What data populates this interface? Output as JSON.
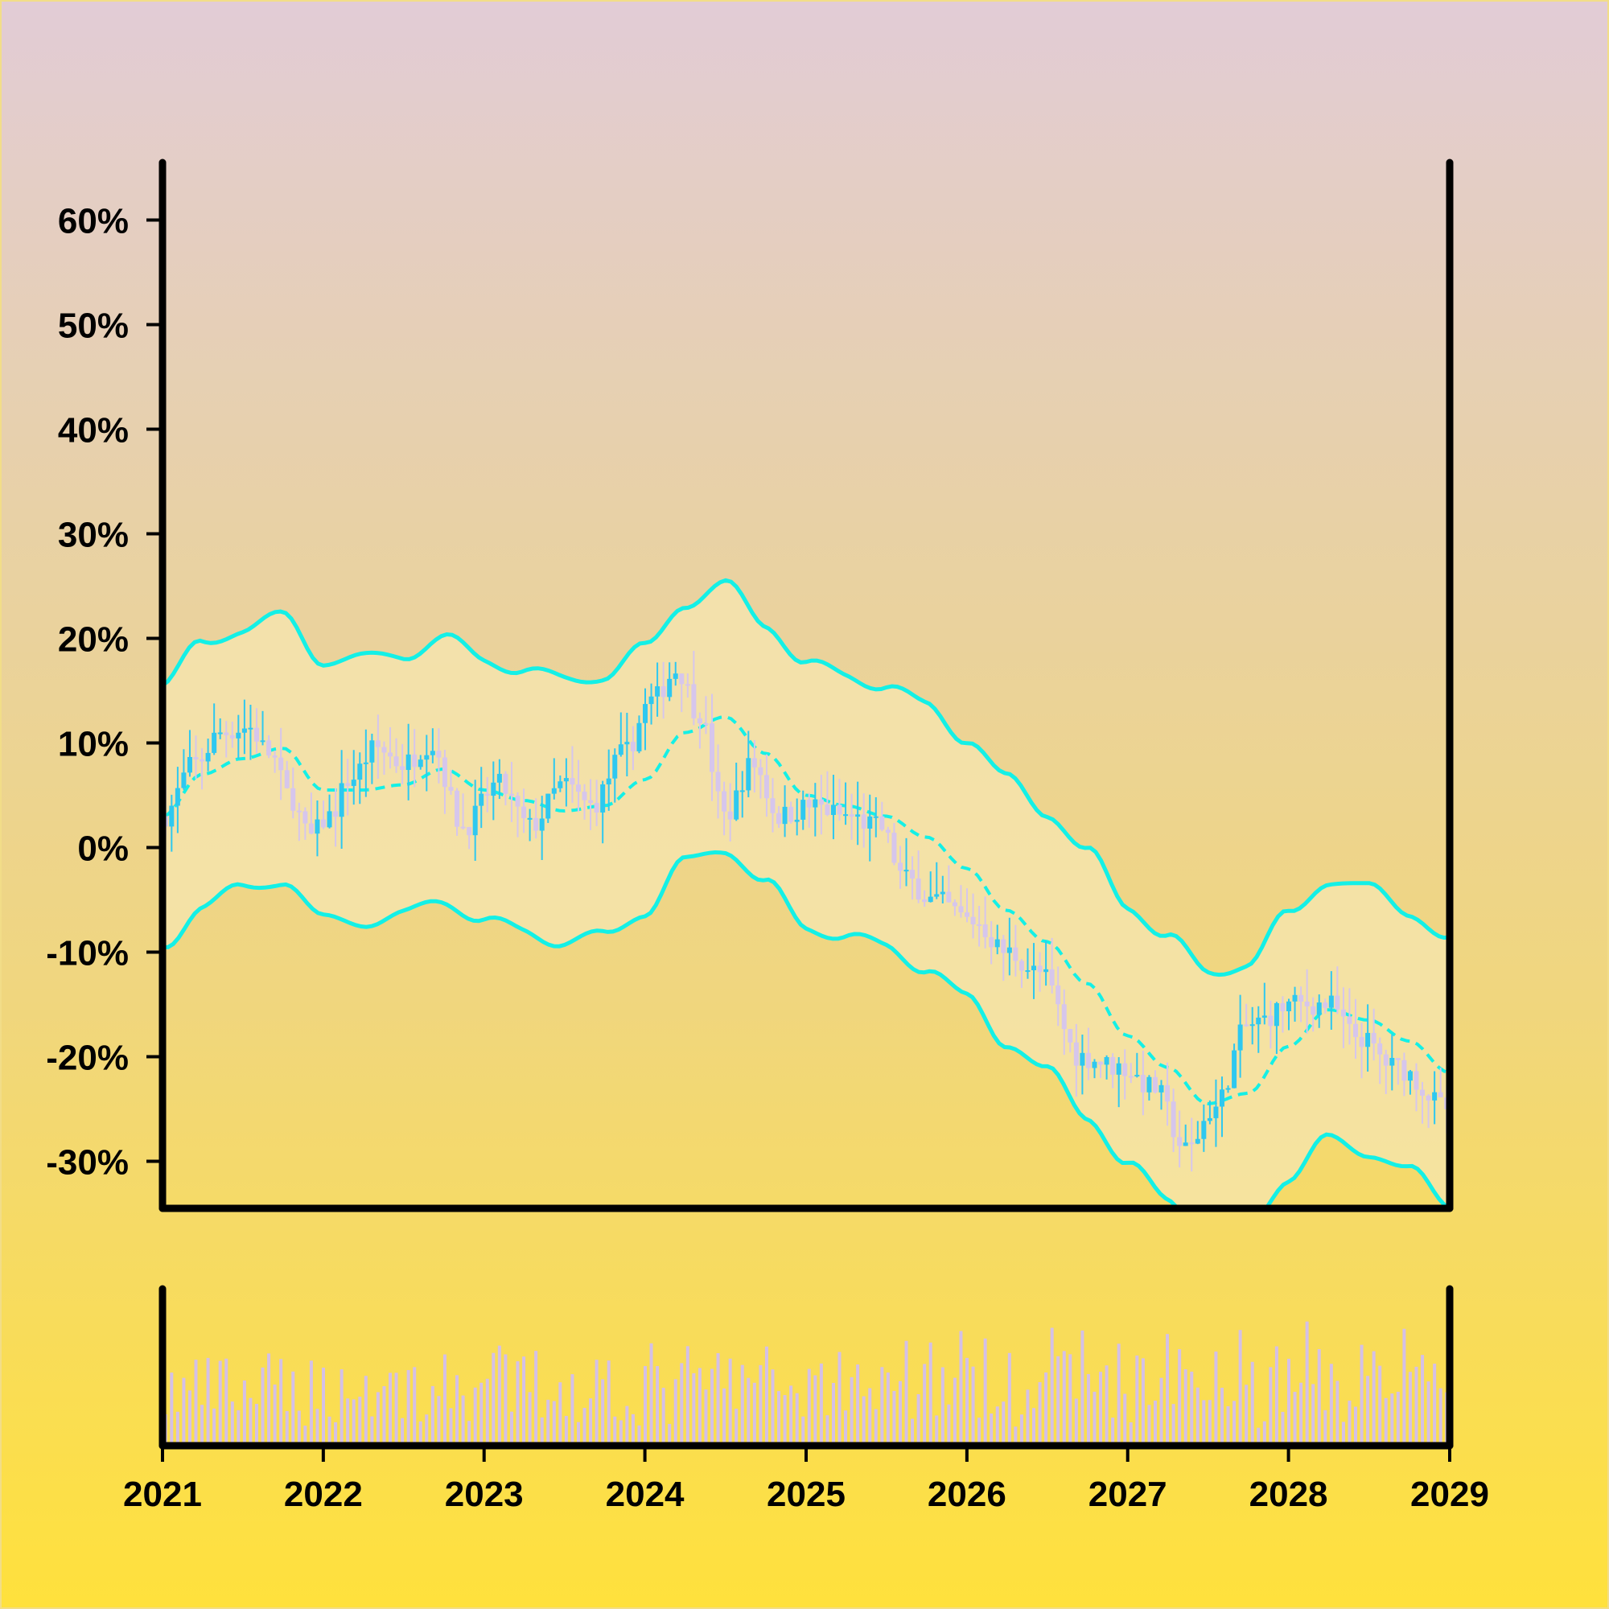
{
  "chart_data": {
    "type": "candlestick",
    "xlabel": "",
    "ylabel": "",
    "title": "",
    "x_tick_labels": [
      "2021",
      "2022",
      "2023",
      "2024",
      "2025",
      "2026",
      "2027",
      "2028",
      "2029"
    ],
    "x_range": [
      "2021-01-01",
      "2029-01-01"
    ],
    "y_tick_labels": [
      "60%",
      "50%",
      "40%",
      "30%",
      "20%",
      "10%",
      "0%",
      "-10%",
      "-20%",
      "-30%"
    ],
    "y_tick_values": [
      60,
      50,
      40,
      30,
      20,
      10,
      0,
      -10,
      -20,
      -30
    ],
    "ylim": [
      -34.5,
      65.5
    ],
    "y_unit": "percent",
    "grid": false,
    "legend": "none",
    "indicators": [
      "moving average (dashed)",
      "upper band",
      "lower band",
      "volume bars"
    ],
    "colors": {
      "candle_up": "#2ec8f0",
      "candle_down": "#d6c6ec",
      "band_line": "#14f0e6",
      "band_fill": "#f5e6b0",
      "volume_bar": "#d4c0e6",
      "axis": "#000000"
    },
    "close_path": [
      {
        "x": "2021-01-01",
        "y": 3
      },
      {
        "x": "2021-03-15",
        "y": 8
      },
      {
        "x": "2021-05-15",
        "y": 11
      },
      {
        "x": "2021-07-15",
        "y": 11.5
      },
      {
        "x": "2021-09-01",
        "y": 9
      },
      {
        "x": "2021-10-15",
        "y": 5
      },
      {
        "x": "2021-12-01",
        "y": 1
      },
      {
        "x": "2022-01-15",
        "y": 3
      },
      {
        "x": "2022-03-01",
        "y": 6.5
      },
      {
        "x": "2022-05-01",
        "y": 9.5
      },
      {
        "x": "2022-07-01",
        "y": 8
      },
      {
        "x": "2022-09-01",
        "y": 10
      },
      {
        "x": "2022-11-15",
        "y": 2
      },
      {
        "x": "2023-02-01",
        "y": 6
      },
      {
        "x": "2023-04-15",
        "y": 2
      },
      {
        "x": "2023-07-01",
        "y": 6
      },
      {
        "x": "2023-09-01",
        "y": 4
      },
      {
        "x": "2023-11-15",
        "y": 9
      },
      {
        "x": "2024-01-15",
        "y": 14
      },
      {
        "x": "2024-03-15",
        "y": 17
      },
      {
        "x": "2024-05-01",
        "y": 13
      },
      {
        "x": "2024-07-01",
        "y": 3
      },
      {
        "x": "2024-09-01",
        "y": 8
      },
      {
        "x": "2024-11-01",
        "y": 3
      },
      {
        "x": "2025-01-15",
        "y": 4
      },
      {
        "x": "2025-04-01",
        "y": 3
      },
      {
        "x": "2025-06-15",
        "y": 2
      },
      {
        "x": "2025-08-15",
        "y": -3
      },
      {
        "x": "2025-10-15",
        "y": -5
      },
      {
        "x": "2026-01-15",
        "y": -7
      },
      {
        "x": "2026-04-01",
        "y": -10
      },
      {
        "x": "2026-06-15",
        "y": -12
      },
      {
        "x": "2026-09-15",
        "y": -20
      },
      {
        "x": "2026-12-15",
        "y": -21
      },
      {
        "x": "2027-03-01",
        "y": -23
      },
      {
        "x": "2027-05-15",
        "y": -29
      },
      {
        "x": "2027-07-15",
        "y": -25
      },
      {
        "x": "2027-10-01",
        "y": -17
      },
      {
        "x": "2028-01-15",
        "y": -15
      },
      {
        "x": "2028-04-01",
        "y": -15
      },
      {
        "x": "2028-06-01",
        "y": -18
      },
      {
        "x": "2028-09-01",
        "y": -21
      },
      {
        "x": "2028-12-31",
        "y": -25
      }
    ],
    "moving_average": [
      {
        "x": "2021-01-01",
        "y": 3
      },
      {
        "x": "2021-04-01",
        "y": 7
      },
      {
        "x": "2021-07-01",
        "y": 8.5
      },
      {
        "x": "2021-10-01",
        "y": 9.5
      },
      {
        "x": "2022-01-01",
        "y": 5.5
      },
      {
        "x": "2022-04-01",
        "y": 5.5
      },
      {
        "x": "2022-07-01",
        "y": 6
      },
      {
        "x": "2022-10-01",
        "y": 7.5
      },
      {
        "x": "2023-01-01",
        "y": 5.5
      },
      {
        "x": "2023-04-01",
        "y": 4.5
      },
      {
        "x": "2023-07-01",
        "y": 3.5
      },
      {
        "x": "2023-10-01",
        "y": 4
      },
      {
        "x": "2024-01-01",
        "y": 6.5
      },
      {
        "x": "2024-04-01",
        "y": 11
      },
      {
        "x": "2024-07-01",
        "y": 12.5
      },
      {
        "x": "2024-10-01",
        "y": 9
      },
      {
        "x": "2025-01-01",
        "y": 5
      },
      {
        "x": "2025-04-01",
        "y": 4
      },
      {
        "x": "2025-07-01",
        "y": 3
      },
      {
        "x": "2025-10-01",
        "y": 1
      },
      {
        "x": "2026-01-01",
        "y": -2
      },
      {
        "x": "2026-04-01",
        "y": -6
      },
      {
        "x": "2026-07-01",
        "y": -9
      },
      {
        "x": "2026-10-01",
        "y": -13
      },
      {
        "x": "2027-01-01",
        "y": -18
      },
      {
        "x": "2027-04-01",
        "y": -21
      },
      {
        "x": "2027-07-01",
        "y": -24.5
      },
      {
        "x": "2027-10-01",
        "y": -23.5
      },
      {
        "x": "2028-01-01",
        "y": -19
      },
      {
        "x": "2028-04-01",
        "y": -15.5
      },
      {
        "x": "2028-07-01",
        "y": -16.5
      },
      {
        "x": "2028-10-01",
        "y": -18.5
      },
      {
        "x": "2028-12-31",
        "y": -21.5
      }
    ],
    "band_width": 12.5,
    "volume_range": [
      0,
      100
    ]
  }
}
